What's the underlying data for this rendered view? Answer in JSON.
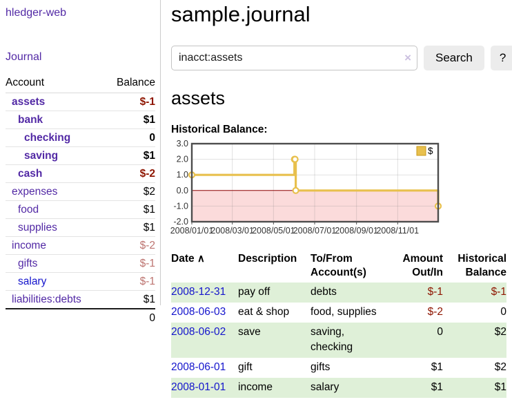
{
  "colors": {
    "link_purple": "#5229a5",
    "link_blue": "#1414cc",
    "negative_strong": "#8e1500",
    "negative_dim": "#bd7470",
    "row_green": "#dff0d8",
    "chart_gold": "#e8c04d",
    "chart_gold_dark": "#c9991c",
    "chart_negative_region": "#fbdbdb",
    "chart_zero_line": "#8b0000"
  },
  "app": {
    "brand": "hledger-web",
    "nav_journal": "Journal"
  },
  "sidebar": {
    "col_account": "Account",
    "col_balance": "Balance",
    "accounts": [
      {
        "name": "assets",
        "balance": "$-1",
        "indent": 1,
        "bold": true,
        "amount_style": "neg",
        "link_style": "purple"
      },
      {
        "name": "bank",
        "balance": "$1",
        "indent": 2,
        "bold": true,
        "amount_style": "",
        "link_style": "purple"
      },
      {
        "name": "checking",
        "balance": "0",
        "indent": 3,
        "bold": true,
        "amount_style": "",
        "link_style": "purple"
      },
      {
        "name": "saving",
        "balance": "$1",
        "indent": 3,
        "bold": true,
        "amount_style": "",
        "link_style": "purple"
      },
      {
        "name": "cash",
        "balance": "$-2",
        "indent": 2,
        "bold": true,
        "amount_style": "neg",
        "link_style": "purple"
      },
      {
        "name": "expenses",
        "balance": "$2",
        "indent": 1,
        "bold": false,
        "amount_style": "",
        "link_style": "purple"
      },
      {
        "name": "food",
        "balance": "$1",
        "indent": 2,
        "bold": false,
        "amount_style": "",
        "link_style": "purple"
      },
      {
        "name": "supplies",
        "balance": "$1",
        "indent": 2,
        "bold": false,
        "amount_style": "",
        "link_style": "purple"
      },
      {
        "name": "income",
        "balance": "$-2",
        "indent": 1,
        "bold": false,
        "amount_style": "negdim",
        "link_style": "purple"
      },
      {
        "name": "gifts",
        "balance": "$-1",
        "indent": 2,
        "bold": false,
        "amount_style": "negdim",
        "link_style": "purple"
      },
      {
        "name": "salary",
        "balance": "$-1",
        "indent": 2,
        "bold": false,
        "amount_style": "negdim",
        "link_style": "blue"
      },
      {
        "name": "liabilities:debts",
        "balance": "$1",
        "indent": 1,
        "bold": false,
        "amount_style": "",
        "link_style": "purple"
      }
    ],
    "total": "0"
  },
  "header": {
    "title": "sample.journal"
  },
  "search": {
    "value": "inacct:assets",
    "clear_icon": "×",
    "button_label": "Search",
    "help_label": "?"
  },
  "main": {
    "account_title": "assets",
    "chart_label": "Historical Balance:"
  },
  "chart_data": {
    "type": "line",
    "title": "Historical Balance:",
    "step": "after",
    "series": [
      {
        "name": "$",
        "points": [
          [
            "2008-01-01",
            1
          ],
          [
            "2008-06-01",
            2
          ],
          [
            "2008-06-02",
            2
          ],
          [
            "2008-06-03",
            0
          ],
          [
            "2008-12-31",
            -1
          ]
        ]
      }
    ],
    "x_range": [
      "2008-01-01",
      "2008-12-31"
    ],
    "x_ticks": [
      "2008/01/01",
      "2008/03/01",
      "2008/05/01",
      "2008/07/01",
      "2008/09/01",
      "2008/11/01"
    ],
    "y_ticks": [
      "3.0",
      "2.0",
      "1.0",
      "0.0",
      "-1.0",
      "-2.0"
    ],
    "ylim": [
      -2,
      3
    ],
    "grid": true,
    "legend": {
      "label": "$",
      "position": "top-right"
    },
    "negative_region": true
  },
  "register": {
    "date_header": "Date",
    "sort_icon": "∧",
    "desc_header": "Description",
    "tofrom_header": "To/From Account(s)",
    "amount_header": "Amount Out/In",
    "hist_header": "Historical Balance",
    "rows": [
      {
        "date": "2008-12-31",
        "description": "pay off",
        "tofrom": "debts",
        "amount": "$-1",
        "amount_style": "neg",
        "balance": "$-1",
        "balance_style": "neg"
      },
      {
        "date": "2008-06-03",
        "description": "eat & shop",
        "tofrom": "food, supplies",
        "amount": "$-2",
        "amount_style": "neg",
        "balance": "0",
        "balance_style": ""
      },
      {
        "date": "2008-06-02",
        "description": "save",
        "tofrom": "saving, checking",
        "amount": "0",
        "amount_style": "",
        "balance": "$2",
        "balance_style": ""
      },
      {
        "date": "2008-06-01",
        "description": "gift",
        "tofrom": "gifts",
        "amount": "$1",
        "amount_style": "",
        "balance": "$2",
        "balance_style": ""
      },
      {
        "date": "2008-01-01",
        "description": "income",
        "tofrom": "salary",
        "amount": "$1",
        "amount_style": "",
        "balance": "$1",
        "balance_style": ""
      }
    ]
  }
}
